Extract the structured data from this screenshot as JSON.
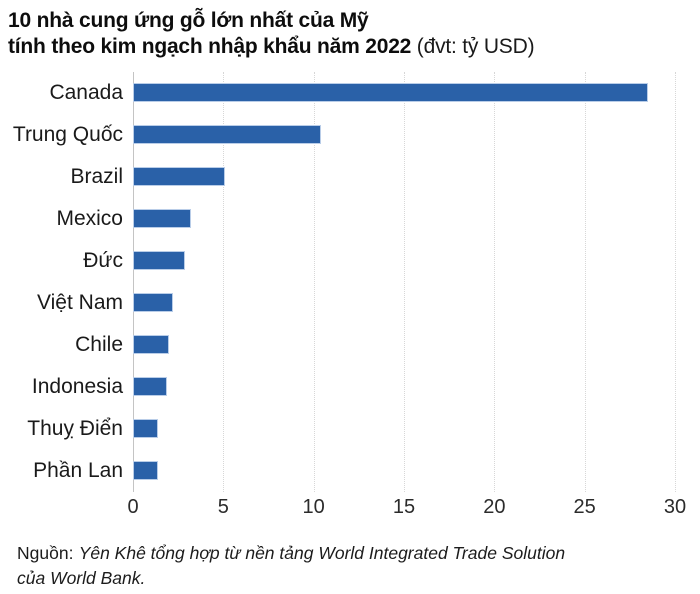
{
  "title": {
    "line1": "10 nhà cung ứng gỗ lớn nhất của Mỹ",
    "line2_bold": "tính theo kim ngạch nhập khẩu năm 2022",
    "line2_unit": " (đvt: tỷ USD)"
  },
  "chart_data": {
    "type": "bar",
    "orientation": "horizontal",
    "title": "10 nhà cung ứng gỗ lớn nhất của Mỹ tính theo kim ngạch nhập khẩu năm 2022",
    "unit": "tỷ USD",
    "categories": [
      "Canada",
      "Trung Quốc",
      "Brazil",
      "Mexico",
      "Đức",
      "Việt Nam",
      "Chile",
      "Indonesia",
      "Thuỵ Điển",
      "Phần Lan"
    ],
    "values": [
      28.5,
      10.4,
      5.1,
      3.2,
      2.9,
      2.2,
      2.0,
      1.9,
      1.4,
      1.4
    ],
    "xlabel": "",
    "ylabel": "",
    "xlim": [
      0,
      30
    ],
    "x_ticks": [
      0,
      5,
      10,
      15,
      20,
      25,
      30
    ],
    "grid": "vertical-dotted",
    "legend": "none",
    "bar_color": "#2a61a8"
  },
  "source": {
    "prefix": "Nguồn:",
    "line1_italic": "Yên Khê tổng hợp từ nền tảng World Integrated Trade Solution",
    "line2_italic": "của World Bank."
  },
  "colors": {
    "bar": "#2a61a8",
    "bar_border": "#b9cde8",
    "grid": "#d7d7d7",
    "axis": "#c4c4c4",
    "text": "#111111"
  }
}
